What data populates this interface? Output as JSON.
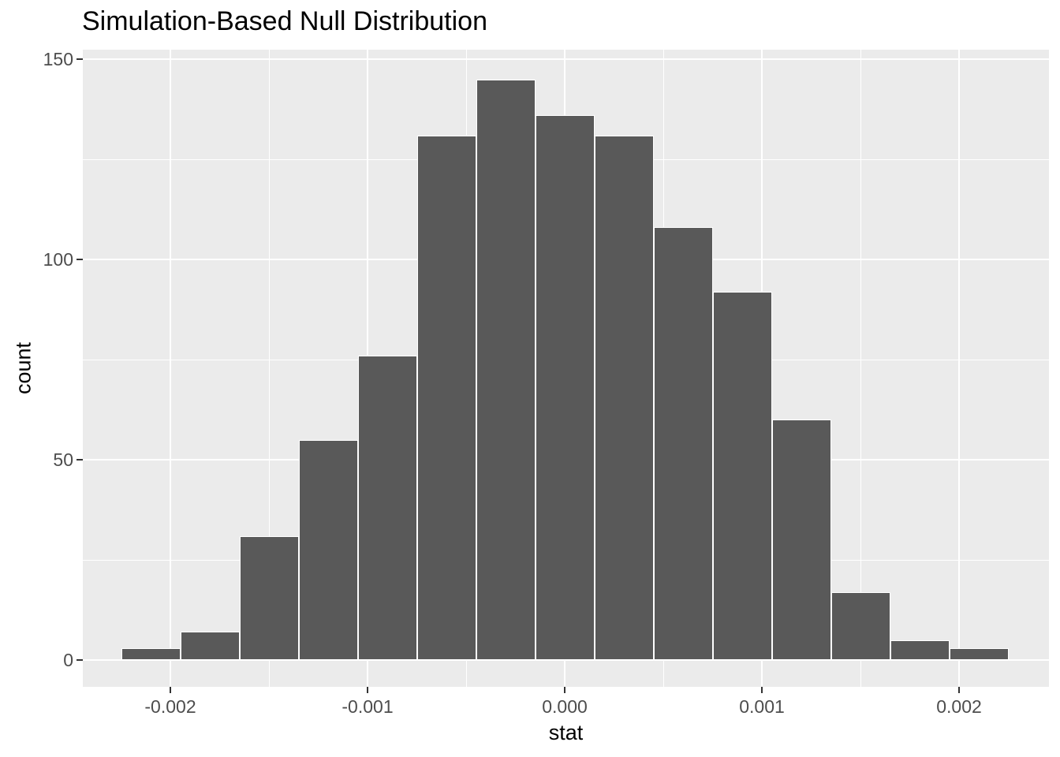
{
  "chart_data": {
    "type": "bar",
    "variant": "histogram",
    "title": "Simulation-Based Null Distribution",
    "xlabel": "stat",
    "ylabel": "count",
    "bin_width": 0.0003,
    "bin_centers": [
      -0.0021,
      -0.0018,
      -0.0015,
      -0.0012,
      -0.0009,
      -0.0006,
      -0.0003,
      0.0,
      0.0003,
      0.0006,
      0.0009,
      0.0012,
      0.0015,
      0.0018,
      0.0021
    ],
    "counts": [
      3,
      7,
      31,
      55,
      76,
      131,
      145,
      136,
      131,
      108,
      92,
      60,
      17,
      5,
      3
    ],
    "x_ticks": {
      "values": [
        -0.002,
        -0.001,
        0.0,
        0.001,
        0.002
      ],
      "labels": [
        "-0.002",
        "-0.001",
        "0.000",
        "0.001",
        "0.002"
      ]
    },
    "y_ticks": {
      "values": [
        0,
        50,
        100,
        150
      ],
      "labels": [
        "0",
        "50",
        "100",
        "150"
      ]
    },
    "x_minor": [
      -0.0015,
      -0.0005,
      0.0005,
      0.0015
    ],
    "y_minor": [
      25,
      75,
      125
    ],
    "xlim": [
      -0.002444,
      0.002456
    ],
    "ylim": [
      -6.7,
      152.4
    ],
    "grid": true,
    "legend": "none",
    "colors": {
      "background": "#FFFFFF",
      "panel_bg": "#EBEBEB",
      "grid": "#FFFFFF",
      "bar_fill": "#595959",
      "bar_stroke": "#FFFFFF",
      "tick_mark": "#333333",
      "tick_label": "#4D4D4D",
      "title": "#000000",
      "axis_title": "#000000"
    }
  }
}
